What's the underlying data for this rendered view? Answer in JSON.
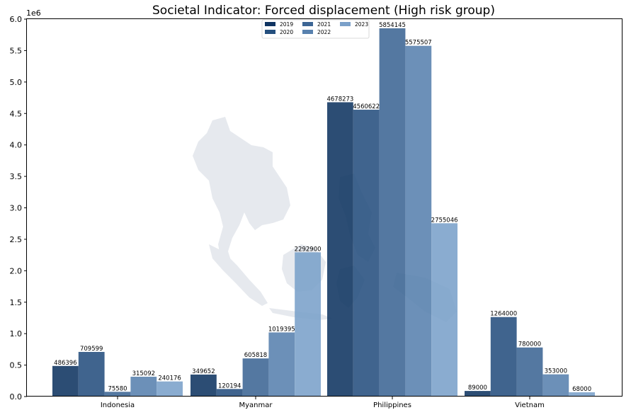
{
  "chart_data": {
    "type": "bar",
    "title": "Societal Indicator: Forced displacement (High risk group)",
    "xlabel": "",
    "ylabel": "",
    "scale_label": "1e6",
    "ylim": [
      0,
      6000000
    ],
    "yticks": [
      0,
      500000,
      1000000,
      1500000,
      2000000,
      2500000,
      3000000,
      3500000,
      4000000,
      4500000,
      5000000,
      5500000,
      6000000
    ],
    "ytick_labels": [
      "0.0",
      "0.5",
      "1.0",
      "1.5",
      "2.0",
      "2.5",
      "3.0",
      "3.5",
      "4.0",
      "4.5",
      "5.0",
      "5.5",
      "6.0"
    ],
    "categories": [
      "Indonesia",
      "Myanmar",
      "Philippines",
      "Vietnam"
    ],
    "legend_position": "top-center",
    "grid": false,
    "series": [
      {
        "name": "2019",
        "color": "#0f3461",
        "values": [
          486396,
          349652,
          4678273,
          89000
        ]
      },
      {
        "name": "2020",
        "color": "#254f7e",
        "values": [
          709599,
          120194,
          4560622,
          1264000
        ]
      },
      {
        "name": "2021",
        "color": "#3c6594",
        "values": [
          75580,
          605818,
          5854145,
          780000
        ]
      },
      {
        "name": "2022",
        "color": "#5881ae",
        "values": [
          315092,
          1019395,
          5575507,
          353000
        ]
      },
      {
        "name": "2023",
        "color": "#7aa0c9",
        "values": [
          240176,
          2292900,
          2755046,
          68000
        ]
      }
    ],
    "data_labels": [
      [
        "486396",
        "349652",
        "4678273",
        "89000"
      ],
      [
        "709599",
        "120194",
        "4560622",
        "1264000"
      ],
      [
        "75580",
        "605818",
        "5854145",
        "780000"
      ],
      [
        "315092",
        "1019395",
        "5575507",
        "353000"
      ],
      [
        "240176",
        "2292900",
        "2755046",
        "68000"
      ]
    ],
    "background_map_color": "#e6e9ee"
  }
}
